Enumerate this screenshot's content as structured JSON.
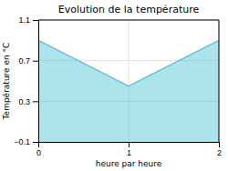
{
  "chart_data": {
    "type": "area",
    "title": "Evolution de la température",
    "x_label": "heure par heure",
    "y_label": "Température en °C",
    "x": [
      0,
      1,
      2
    ],
    "values": [
      0.9,
      0.45,
      0.9
    ],
    "color": "#5bc8d8",
    "xlim": [
      0,
      2
    ],
    "ylim": [
      -0.1,
      1.1
    ],
    "xticks": [
      0,
      1,
      2
    ],
    "yticks": [
      -0.1,
      0.3,
      0.7,
      1.1
    ],
    "grid": true
  }
}
